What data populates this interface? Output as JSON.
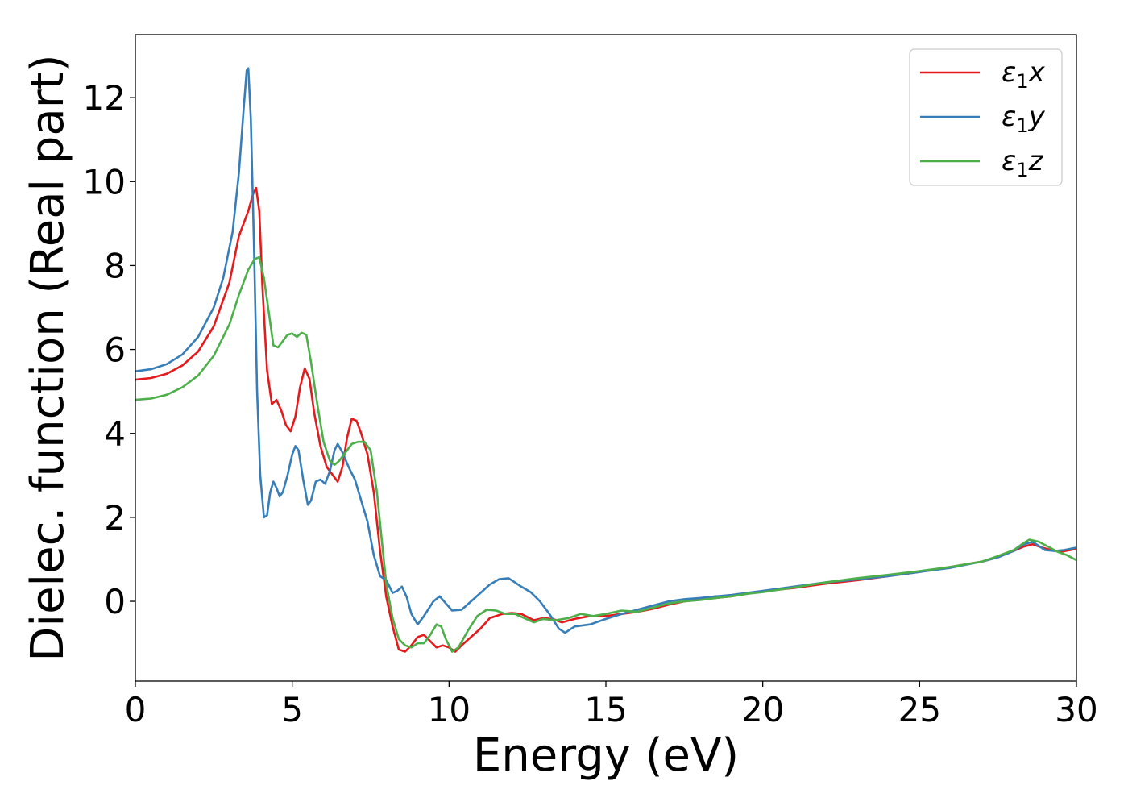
{
  "chart_data": {
    "type": "line",
    "xlabel": "Energy (eV)",
    "ylabel": "Dielec. function (Real part)",
    "xlim": [
      0,
      30
    ],
    "ylim": [
      -1.9,
      13.5
    ],
    "xticks": [
      0,
      5,
      10,
      15,
      20,
      25,
      30
    ],
    "yticks": [
      0,
      2,
      4,
      6,
      8,
      10,
      12
    ],
    "grid": false,
    "legend_position": "top-right",
    "series": [
      {
        "name": "ε1x",
        "label_base": "ε",
        "label_sub": "1",
        "label_var": "x",
        "color": "#e41a1c",
        "points": [
          [
            0,
            5.28
          ],
          [
            0.5,
            5.32
          ],
          [
            1.0,
            5.42
          ],
          [
            1.5,
            5.62
          ],
          [
            2.0,
            5.95
          ],
          [
            2.5,
            6.55
          ],
          [
            3.0,
            7.6
          ],
          [
            3.3,
            8.7
          ],
          [
            3.6,
            9.3
          ],
          [
            3.75,
            9.7
          ],
          [
            3.85,
            9.85
          ],
          [
            3.95,
            9.3
          ],
          [
            4.05,
            7.5
          ],
          [
            4.2,
            5.5
          ],
          [
            4.35,
            4.7
          ],
          [
            4.5,
            4.8
          ],
          [
            4.65,
            4.55
          ],
          [
            4.8,
            4.2
          ],
          [
            4.95,
            4.05
          ],
          [
            5.1,
            4.4
          ],
          [
            5.25,
            5.1
          ],
          [
            5.4,
            5.55
          ],
          [
            5.55,
            5.3
          ],
          [
            5.7,
            4.5
          ],
          [
            5.9,
            3.7
          ],
          [
            6.1,
            3.2
          ],
          [
            6.3,
            3.0
          ],
          [
            6.45,
            2.85
          ],
          [
            6.6,
            3.2
          ],
          [
            6.75,
            3.9
          ],
          [
            6.9,
            4.35
          ],
          [
            7.05,
            4.3
          ],
          [
            7.2,
            4.0
          ],
          [
            7.4,
            3.5
          ],
          [
            7.6,
            2.6
          ],
          [
            7.8,
            1.2
          ],
          [
            8.0,
            0.1
          ],
          [
            8.2,
            -0.6
          ],
          [
            8.4,
            -1.15
          ],
          [
            8.6,
            -1.2
          ],
          [
            8.8,
            -1.05
          ],
          [
            9.0,
            -0.85
          ],
          [
            9.2,
            -0.8
          ],
          [
            9.4,
            -0.95
          ],
          [
            9.6,
            -1.1
          ],
          [
            9.8,
            -1.05
          ],
          [
            10.0,
            -1.1
          ],
          [
            10.2,
            -1.2
          ],
          [
            10.4,
            -1.05
          ],
          [
            10.7,
            -0.85
          ],
          [
            11.0,
            -0.65
          ],
          [
            11.3,
            -0.4
          ],
          [
            11.7,
            -0.3
          ],
          [
            12.0,
            -0.28
          ],
          [
            12.3,
            -0.3
          ],
          [
            12.7,
            -0.45
          ],
          [
            13.0,
            -0.4
          ],
          [
            13.3,
            -0.42
          ],
          [
            13.6,
            -0.5
          ],
          [
            14.0,
            -0.42
          ],
          [
            14.5,
            -0.35
          ],
          [
            15.0,
            -0.35
          ],
          [
            15.5,
            -0.3
          ],
          [
            16.0,
            -0.25
          ],
          [
            16.5,
            -0.18
          ],
          [
            17.0,
            -0.08
          ],
          [
            17.5,
            0.0
          ],
          [
            18.0,
            0.05
          ],
          [
            18.5,
            0.08
          ],
          [
            19.0,
            0.12
          ],
          [
            19.5,
            0.18
          ],
          [
            20.0,
            0.24
          ],
          [
            21.0,
            0.32
          ],
          [
            22.0,
            0.42
          ],
          [
            23.0,
            0.5
          ],
          [
            24.0,
            0.6
          ],
          [
            25.0,
            0.7
          ],
          [
            26.0,
            0.82
          ],
          [
            27.0,
            0.95
          ],
          [
            27.5,
            1.05
          ],
          [
            28.0,
            1.2
          ],
          [
            28.3,
            1.3
          ],
          [
            28.6,
            1.36
          ],
          [
            28.9,
            1.28
          ],
          [
            29.2,
            1.22
          ],
          [
            29.5,
            1.18
          ],
          [
            29.8,
            1.22
          ],
          [
            30.0,
            1.25
          ]
        ]
      },
      {
        "name": "ε1y",
        "label_base": "ε",
        "label_sub": "1",
        "label_var": "y",
        "color": "#377eb8",
        "points": [
          [
            0,
            5.48
          ],
          [
            0.5,
            5.53
          ],
          [
            1.0,
            5.65
          ],
          [
            1.5,
            5.88
          ],
          [
            2.0,
            6.3
          ],
          [
            2.5,
            7.0
          ],
          [
            2.8,
            7.7
          ],
          [
            3.1,
            8.8
          ],
          [
            3.3,
            10.2
          ],
          [
            3.45,
            11.7
          ],
          [
            3.55,
            12.65
          ],
          [
            3.6,
            12.7
          ],
          [
            3.68,
            11.5
          ],
          [
            3.78,
            8.5
          ],
          [
            3.88,
            5.0
          ],
          [
            3.98,
            3.0
          ],
          [
            4.1,
            2.0
          ],
          [
            4.2,
            2.05
          ],
          [
            4.3,
            2.6
          ],
          [
            4.4,
            2.85
          ],
          [
            4.5,
            2.7
          ],
          [
            4.6,
            2.5
          ],
          [
            4.7,
            2.6
          ],
          [
            4.85,
            3.0
          ],
          [
            5.0,
            3.5
          ],
          [
            5.1,
            3.7
          ],
          [
            5.2,
            3.6
          ],
          [
            5.35,
            2.9
          ],
          [
            5.5,
            2.3
          ],
          [
            5.6,
            2.4
          ],
          [
            5.75,
            2.85
          ],
          [
            5.9,
            2.9
          ],
          [
            6.05,
            2.8
          ],
          [
            6.2,
            3.1
          ],
          [
            6.35,
            3.6
          ],
          [
            6.45,
            3.75
          ],
          [
            6.6,
            3.55
          ],
          [
            6.8,
            3.2
          ],
          [
            7.0,
            2.9
          ],
          [
            7.2,
            2.4
          ],
          [
            7.4,
            1.9
          ],
          [
            7.6,
            1.1
          ],
          [
            7.8,
            0.6
          ],
          [
            8.0,
            0.5
          ],
          [
            8.2,
            0.2
          ],
          [
            8.35,
            0.25
          ],
          [
            8.5,
            0.35
          ],
          [
            8.65,
            0.1
          ],
          [
            8.8,
            -0.3
          ],
          [
            9.0,
            -0.55
          ],
          [
            9.2,
            -0.35
          ],
          [
            9.5,
            0.0
          ],
          [
            9.7,
            0.12
          ],
          [
            9.9,
            -0.05
          ],
          [
            10.1,
            -0.22
          ],
          [
            10.4,
            -0.2
          ],
          [
            10.7,
            0.0
          ],
          [
            11.0,
            0.2
          ],
          [
            11.3,
            0.4
          ],
          [
            11.6,
            0.53
          ],
          [
            11.9,
            0.55
          ],
          [
            12.1,
            0.45
          ],
          [
            12.3,
            0.35
          ],
          [
            12.6,
            0.22
          ],
          [
            12.9,
            0.0
          ],
          [
            13.2,
            -0.3
          ],
          [
            13.5,
            -0.65
          ],
          [
            13.7,
            -0.75
          ],
          [
            14.0,
            -0.6
          ],
          [
            14.5,
            -0.55
          ],
          [
            15.0,
            -0.42
          ],
          [
            15.5,
            -0.3
          ],
          [
            16.0,
            -0.2
          ],
          [
            16.5,
            -0.1
          ],
          [
            17.0,
            0.0
          ],
          [
            17.5,
            0.05
          ],
          [
            18.0,
            0.08
          ],
          [
            18.5,
            0.12
          ],
          [
            19.0,
            0.15
          ],
          [
            19.5,
            0.2
          ],
          [
            20.0,
            0.25
          ],
          [
            21.0,
            0.35
          ],
          [
            22.0,
            0.45
          ],
          [
            23.0,
            0.52
          ],
          [
            24.0,
            0.6
          ],
          [
            25.0,
            0.7
          ],
          [
            26.0,
            0.8
          ],
          [
            27.0,
            0.95
          ],
          [
            27.5,
            1.05
          ],
          [
            28.0,
            1.2
          ],
          [
            28.3,
            1.35
          ],
          [
            28.6,
            1.42
          ],
          [
            28.8,
            1.32
          ],
          [
            29.0,
            1.22
          ],
          [
            29.3,
            1.2
          ],
          [
            29.6,
            1.22
          ],
          [
            30.0,
            1.28
          ]
        ]
      },
      {
        "name": "ε1z",
        "label_base": "ε",
        "label_sub": "1",
        "label_var": "z",
        "color": "#4daf4a",
        "points": [
          [
            0,
            4.8
          ],
          [
            0.5,
            4.83
          ],
          [
            1.0,
            4.92
          ],
          [
            1.5,
            5.1
          ],
          [
            2.0,
            5.38
          ],
          [
            2.5,
            5.85
          ],
          [
            3.0,
            6.6
          ],
          [
            3.3,
            7.3
          ],
          [
            3.6,
            7.9
          ],
          [
            3.8,
            8.15
          ],
          [
            3.95,
            8.2
          ],
          [
            4.1,
            7.7
          ],
          [
            4.25,
            6.9
          ],
          [
            4.4,
            6.1
          ],
          [
            4.55,
            6.05
          ],
          [
            4.7,
            6.2
          ],
          [
            4.85,
            6.35
          ],
          [
            5.0,
            6.38
          ],
          [
            5.15,
            6.3
          ],
          [
            5.3,
            6.4
          ],
          [
            5.45,
            6.35
          ],
          [
            5.6,
            5.7
          ],
          [
            5.8,
            4.7
          ],
          [
            6.0,
            3.8
          ],
          [
            6.2,
            3.35
          ],
          [
            6.35,
            3.25
          ],
          [
            6.5,
            3.35
          ],
          [
            6.7,
            3.55
          ],
          [
            6.9,
            3.75
          ],
          [
            7.1,
            3.8
          ],
          [
            7.3,
            3.8
          ],
          [
            7.5,
            3.6
          ],
          [
            7.7,
            2.6
          ],
          [
            7.85,
            1.5
          ],
          [
            8.0,
            0.4
          ],
          [
            8.2,
            -0.4
          ],
          [
            8.4,
            -0.9
          ],
          [
            8.6,
            -1.05
          ],
          [
            8.8,
            -1.1
          ],
          [
            9.0,
            -1.0
          ],
          [
            9.2,
            -1.0
          ],
          [
            9.4,
            -0.8
          ],
          [
            9.6,
            -0.55
          ],
          [
            9.75,
            -0.6
          ],
          [
            9.9,
            -0.9
          ],
          [
            10.1,
            -1.2
          ],
          [
            10.3,
            -1.1
          ],
          [
            10.6,
            -0.7
          ],
          [
            10.9,
            -0.35
          ],
          [
            11.2,
            -0.2
          ],
          [
            11.5,
            -0.22
          ],
          [
            11.8,
            -0.3
          ],
          [
            12.1,
            -0.3
          ],
          [
            12.4,
            -0.4
          ],
          [
            12.7,
            -0.5
          ],
          [
            13.0,
            -0.42
          ],
          [
            13.4,
            -0.45
          ],
          [
            13.8,
            -0.4
          ],
          [
            14.2,
            -0.3
          ],
          [
            14.6,
            -0.35
          ],
          [
            15.0,
            -0.3
          ],
          [
            15.5,
            -0.22
          ],
          [
            16.0,
            -0.25
          ],
          [
            16.5,
            -0.15
          ],
          [
            17.0,
            -0.05
          ],
          [
            17.5,
            0.0
          ],
          [
            18.0,
            0.03
          ],
          [
            18.5,
            0.08
          ],
          [
            19.0,
            0.12
          ],
          [
            19.5,
            0.18
          ],
          [
            20.0,
            0.22
          ],
          [
            21.0,
            0.33
          ],
          [
            22.0,
            0.45
          ],
          [
            23.0,
            0.55
          ],
          [
            24.0,
            0.63
          ],
          [
            25.0,
            0.72
          ],
          [
            26.0,
            0.82
          ],
          [
            27.0,
            0.95
          ],
          [
            27.5,
            1.08
          ],
          [
            28.0,
            1.22
          ],
          [
            28.3,
            1.38
          ],
          [
            28.5,
            1.47
          ],
          [
            28.8,
            1.42
          ],
          [
            29.1,
            1.3
          ],
          [
            29.4,
            1.18
          ],
          [
            29.7,
            1.1
          ],
          [
            30.0,
            0.98
          ]
        ]
      }
    ]
  }
}
